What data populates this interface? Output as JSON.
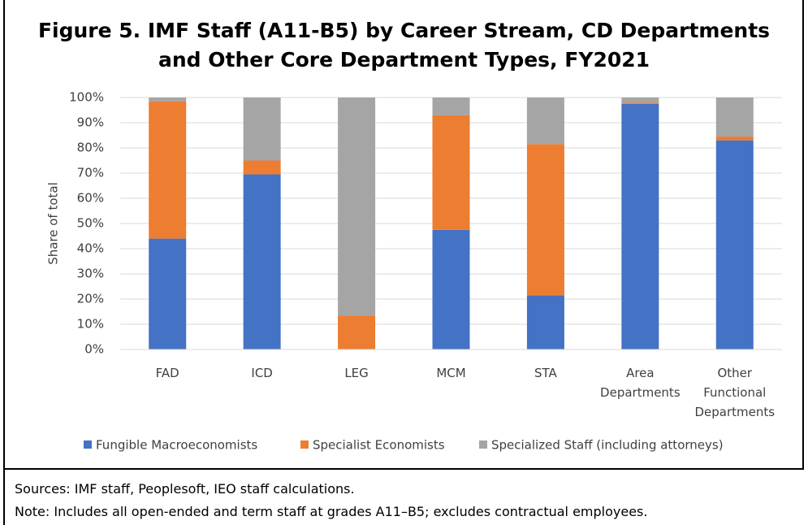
{
  "chart_data": {
    "type": "stacked_bar",
    "title": "Figure 5. IMF Staff (A11-B5) by Career Stream, CD Departments and Other Core Department Types, FY2021",
    "y_label": "Share of total",
    "categories": [
      "FAD",
      "ICD",
      "LEG",
      "MCM",
      "STA",
      "Area Departments",
      "Other Functional Departments"
    ],
    "series": [
      {
        "name": "Fungible Macroeconomists",
        "color": "#4472c4",
        "values": [
          44,
          69.5,
          0,
          47.5,
          21.5,
          97.5,
          83
        ]
      },
      {
        "name": "Specialist Economists",
        "color": "#ed7d31",
        "values": [
          54.5,
          5.5,
          13.5,
          45.5,
          60,
          0.5,
          1.5
        ]
      },
      {
        "name": "Specialized Staff (including attorneys)",
        "color": "#a5a5a5",
        "values": [
          1.5,
          25,
          86.5,
          7,
          18.5,
          2,
          15.5
        ]
      }
    ],
    "ylim": [
      0,
      100
    ],
    "yticks": [
      {
        "value": 0,
        "label": "0%"
      },
      {
        "value": 10,
        "label": "10%"
      },
      {
        "value": 20,
        "label": "20%"
      },
      {
        "value": 30,
        "label": "30%"
      },
      {
        "value": 40,
        "label": "40%"
      },
      {
        "value": 50,
        "label": "50%"
      },
      {
        "value": 60,
        "label": "60%"
      },
      {
        "value": 70,
        "label": "70%"
      },
      {
        "value": 80,
        "label": "80%"
      },
      {
        "value": 90,
        "label": "90%"
      },
      {
        "value": 100,
        "label": "100%"
      }
    ],
    "grid": true,
    "legend": "bottom",
    "notes": [
      "Sources: IMF staff, Peoplesoft, IEO staff calculations.",
      "Note: Includes all open-ended and term staff at grades A11–B5; excludes contractual employees."
    ]
  }
}
